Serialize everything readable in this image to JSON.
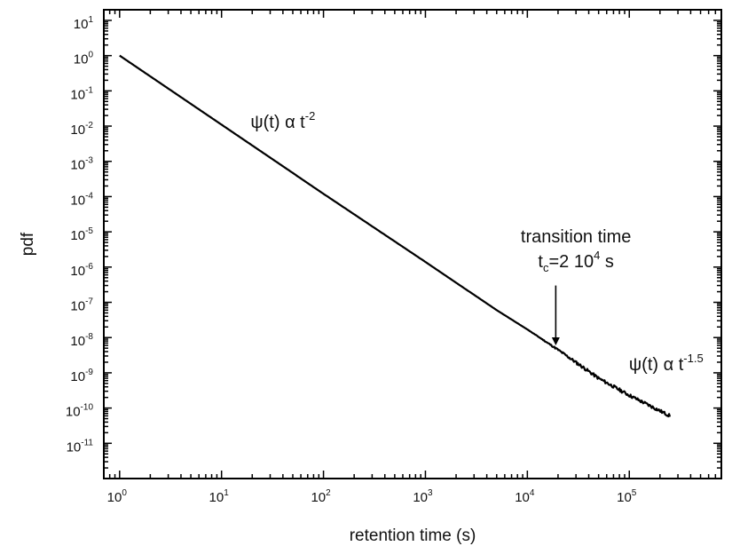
{
  "chart_data": {
    "type": "line",
    "title": "",
    "xlabel": "retention time (s)",
    "ylabel": "pdf",
    "x_scale": "log",
    "y_scale": "log",
    "xlim": [
      0.7,
      800000
    ],
    "ylim": [
      1e-12,
      20
    ],
    "grid": false,
    "x_ticks": [
      {
        "base": "10",
        "exp": "0"
      },
      {
        "base": "10",
        "exp": "1"
      },
      {
        "base": "10",
        "exp": "2"
      },
      {
        "base": "10",
        "exp": "3"
      },
      {
        "base": "10",
        "exp": "4"
      },
      {
        "base": "10",
        "exp": "5"
      }
    ],
    "y_ticks": [
      {
        "base": "10",
        "exp": "1"
      },
      {
        "base": "10",
        "exp": "0"
      },
      {
        "base": "10",
        "exp": "-1"
      },
      {
        "base": "10",
        "exp": "-2"
      },
      {
        "base": "10",
        "exp": "-3"
      },
      {
        "base": "10",
        "exp": "-4"
      },
      {
        "base": "10",
        "exp": "-5"
      },
      {
        "base": "10",
        "exp": "-6"
      },
      {
        "base": "10",
        "exp": "-7"
      },
      {
        "base": "10",
        "exp": "-8"
      },
      {
        "base": "10",
        "exp": "-9"
      },
      {
        "base": "10",
        "exp": "-10"
      },
      {
        "base": "10",
        "exp": "-11"
      }
    ],
    "series": [
      {
        "x": [
          1,
          10,
          100,
          1000,
          5000,
          10000,
          20000,
          50000,
          100000,
          250000
        ],
        "y": [
          1,
          0.011,
          0.00012,
          1.4e-06,
          6e-08,
          1.7e-08,
          4.5e-09,
          7e-10,
          2.3e-10,
          6e-11
        ],
        "color": "#000000",
        "noise_after_x": 10000
      }
    ],
    "annotations": [
      {
        "parts": [
          "ψ(t) α t",
          "-2"
        ],
        "x": 40,
        "y": 0.009
      },
      {
        "parts": [
          "transition time"
        ],
        "x": 30000,
        "y": 5e-06
      },
      {
        "parts": [
          "t",
          "c",
          "=2 10",
          "4",
          " s"
        ],
        "x": 30000,
        "y": 1e-06
      },
      {
        "parts": [
          "ψ(t) α t",
          "-1.5"
        ],
        "x": 230000,
        "y": 1.2e-09
      }
    ],
    "arrow": {
      "x": 19000,
      "y_from": 3e-07,
      "y_to": 6e-09
    }
  }
}
